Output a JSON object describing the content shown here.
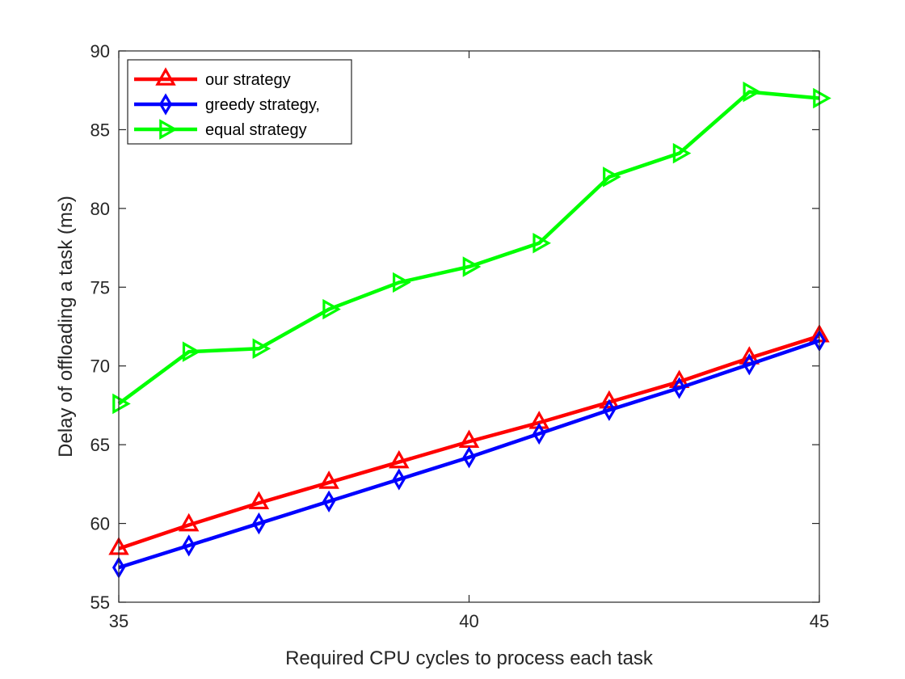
{
  "chart_data": {
    "type": "line",
    "title": "",
    "xlabel": "Required CPU cycles to process each task",
    "ylabel": "Delay of offloading a task (ms)",
    "xlim": [
      35,
      45
    ],
    "ylim": [
      55,
      90
    ],
    "xticks": [
      "35",
      "40",
      "45"
    ],
    "yticks": [
      "55",
      "60",
      "65",
      "70",
      "75",
      "80",
      "85",
      "90"
    ],
    "grid": false,
    "legend_position": "top-left",
    "x": [
      35,
      36,
      37,
      38,
      39,
      40,
      41,
      42,
      43,
      44,
      45
    ],
    "series": [
      {
        "name": "our strategy",
        "color": "#ff0000",
        "marker": "triangle-up",
        "x": [
          35,
          36,
          37,
          38,
          39,
          40,
          41,
          42,
          43,
          44,
          45
        ],
        "values": [
          58.4,
          59.9,
          61.3,
          62.6,
          63.9,
          65.2,
          66.4,
          67.7,
          69.0,
          70.5,
          71.9
        ]
      },
      {
        "name": "greedy strategy,",
        "color": "#0000ff",
        "marker": "diamond",
        "x": [
          35,
          36,
          37,
          38,
          39,
          40,
          41,
          42,
          43,
          44,
          45
        ],
        "values": [
          57.2,
          58.6,
          60.0,
          61.4,
          62.8,
          64.2,
          65.7,
          67.2,
          68.6,
          70.1,
          71.6
        ]
      },
      {
        "name": "equal strategy",
        "color": "#00ff00",
        "marker": "triangle-right",
        "x": [
          35,
          36,
          37,
          38,
          39,
          40,
          41,
          42,
          43,
          44,
          45
        ],
        "values": [
          67.6,
          70.9,
          71.1,
          73.6,
          75.3,
          76.3,
          77.8,
          82.0,
          83.5,
          87.4,
          87.0
        ]
      }
    ]
  }
}
